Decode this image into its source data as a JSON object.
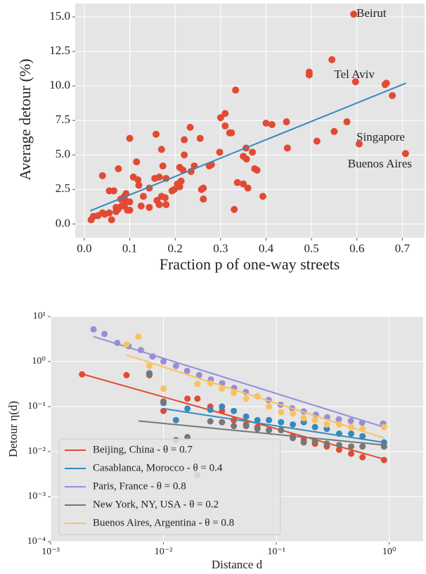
{
  "chart_data": [
    {
      "type": "scatter",
      "xlabel": "Fraction p of one-way streets",
      "ylabel": "Average detour (%)",
      "xlim": [
        -0.02,
        0.749
      ],
      "ylim": [
        -1.0,
        15.97
      ],
      "xticks": [
        {
          "value": 0,
          "label": "0.0"
        },
        0.1,
        0.2,
        0.3,
        0.4,
        0.5,
        0.6,
        0.7
      ],
      "yticks": [
        {
          "value": 0,
          "label": "0.0"
        },
        2.5,
        {
          "value": 5,
          "label": "5.0"
        },
        7.5,
        {
          "value": 10,
          "label": "10.0"
        },
        12.5,
        {
          "value": 15,
          "label": "15.0"
        }
      ],
      "grid": true,
      "series": [
        {
          "style": "points",
          "color": "#E24A33",
          "x": [
            0.593,
            0.545,
            0.495,
            0.495,
            0.597,
            0.665,
            0.662,
            0.678,
            0.333,
            0.31,
            0.3,
            0.31,
            0.32,
            0.324,
            0.4,
            0.413,
            0.445,
            0.578,
            0.55,
            0.605,
            0.707,
            0.512,
            0.447,
            0.37,
            0.356,
            0.35,
            0.357,
            0.375,
            0.38,
            0.298,
            0.337,
            0.35,
            0.36,
            0.393,
            0.33,
            0.28,
            0.275,
            0.255,
            0.233,
            0.22,
            0.22,
            0.217,
            0.235,
            0.242,
            0.21,
            0.205,
            0.213,
            0.198,
            0.193,
            0.21,
            0.258,
            0.262,
            0.262,
            0.158,
            0.17,
            0.1,
            0.075,
            0.115,
            0.173,
            0.165,
            0.155,
            0.18,
            0.143,
            0.17,
            0.178,
            0.16,
            0.165,
            0.18,
            0.143,
            0.118,
            0.108,
            0.12,
            0.13,
            0.125,
            0.1,
            0.09,
            0.095,
            0.088,
            0.092,
            0.08,
            0.082,
            0.075,
            0.07,
            0.065,
            0.055,
            0.04,
            0.07,
            0.045,
            0.04,
            0.06,
            0.055,
            0.03,
            0.02,
            0.015,
            0.088,
            0.1
          ],
          "values": [
            15.2,
            11.9,
            11.0,
            10.8,
            10.3,
            10.2,
            10.1,
            9.3,
            9.7,
            8.0,
            7.7,
            7.1,
            6.6,
            6.6,
            7.3,
            7.2,
            7.4,
            7.4,
            6.7,
            5.8,
            5.1,
            6.0,
            5.5,
            5.2,
            5.5,
            4.9,
            4.7,
            4.0,
            3.9,
            5.2,
            3.0,
            2.9,
            2.6,
            2.0,
            1.05,
            4.3,
            4.2,
            6.2,
            7.0,
            6.1,
            5.0,
            3.9,
            3.8,
            4.2,
            4.1,
            2.9,
            3.1,
            2.5,
            2.4,
            2.7,
            2.5,
            2.6,
            1.8,
            6.5,
            5.4,
            6.2,
            4.0,
            4.5,
            4.2,
            3.4,
            3.3,
            3.3,
            2.6,
            2.0,
            1.9,
            1.7,
            1.4,
            1.4,
            1.2,
            3.2,
            3.4,
            2.8,
            2.0,
            1.3,
            1.6,
            1.7,
            1.0,
            2.0,
            2.2,
            1.8,
            1.3,
            1.1,
            1.2,
            2.4,
            2.4,
            3.5,
            0.9,
            0.7,
            0.8,
            0.3,
            0.8,
            0.6,
            0.55,
            0.3,
            1.3,
            1.0
          ]
        },
        {
          "style": "line",
          "color": "#348ABD",
          "x": [
            0.013,
            0.708
          ],
          "values": [
            0.95,
            10.2
          ]
        }
      ],
      "annotations": [
        {
          "text": "Beirut",
          "x": 0.599,
          "y": 15.2
        },
        {
          "text": "Tel Aviv",
          "x": 0.55,
          "y": 10.77
        },
        {
          "text": "Singapore",
          "x": 0.599,
          "y": 6.22
        },
        {
          "text": "Buenos Aires",
          "x": 0.58,
          "y": 4.29
        }
      ]
    },
    {
      "type": "scatter",
      "xlabel": "Distance d",
      "ylabel": "Detour η(d)",
      "xscale": "log",
      "yscale": "log",
      "xlim": [
        0.001,
        2.0
      ],
      "ylim": [
        0.0001,
        10
      ],
      "xticks": [
        {
          "value": 0.001,
          "label": "10⁻³"
        },
        {
          "value": 0.01,
          "label": "10⁻²"
        },
        {
          "value": 0.1,
          "label": "10⁻¹"
        },
        {
          "value": 1,
          "label": "10⁰"
        }
      ],
      "yticks": [
        {
          "value": 0.0001,
          "label": "10⁻⁴"
        },
        {
          "value": 0.001,
          "label": "10⁻³"
        },
        {
          "value": 0.01,
          "label": "10⁻²"
        },
        {
          "value": 0.1,
          "label": "10⁻¹"
        },
        {
          "value": 1,
          "label": "10⁰"
        },
        {
          "value": 10,
          "label": "10¹"
        }
      ],
      "grid": true,
      "legend": "lower left",
      "series": [
        {
          "name": "Beijing, China - θ = 0.7",
          "color": "#E24A33",
          "x": [
            0.0019,
            0.0047,
            0.0075,
            0.01,
            0.0163,
            0.02,
            0.026,
            0.033,
            0.042,
            0.054,
            0.068,
            0.086,
            0.11,
            0.14,
            0.175,
            0.22,
            0.28,
            0.36,
            0.46,
            0.58,
            0.9
          ],
          "values": [
            0.52,
            0.5,
            0.5,
            0.08,
            0.15,
            0.15,
            0.1,
            0.08,
            0.05,
            0.04,
            0.035,
            0.03,
            0.03,
            0.022,
            0.018,
            0.015,
            0.013,
            0.011,
            0.009,
            0.0075,
            0.0065
          ],
          "fit": {
            "x": [
              0.0019,
              0.9
            ],
            "values": [
              0.53,
              0.0068
            ]
          }
        },
        {
          "name": "Casablanca, Morocco - θ = 0.4",
          "color": "#348ABD",
          "x": [
            0.0075,
            0.01,
            0.0129,
            0.0163,
            0.026,
            0.033,
            0.042,
            0.054,
            0.068,
            0.086,
            0.11,
            0.14,
            0.175,
            0.22,
            0.28,
            0.36,
            0.46,
            0.58,
            0.9
          ],
          "values": [
            0.55,
            0.12,
            0.05,
            0.09,
            0.085,
            0.1,
            0.08,
            0.06,
            0.05,
            0.05,
            0.045,
            0.04,
            0.045,
            0.035,
            0.032,
            0.025,
            0.025,
            0.022,
            0.016
          ],
          "fit": {
            "x": [
              0.01,
              0.9
            ],
            "values": [
              0.09,
              0.016
            ]
          }
        },
        {
          "name": "Paris, France - θ = 0.8",
          "color": "#988ED5",
          "x": [
            0.0024,
            0.003,
            0.0039,
            0.0049,
            0.0063,
            0.008,
            0.01,
            0.0129,
            0.0162,
            0.0207,
            0.0263,
            0.0331,
            0.0423,
            0.0537,
            0.068,
            0.0855,
            0.109,
            0.138,
            0.175,
            0.224,
            0.282,
            0.358,
            0.457,
            0.575,
            0.885
          ],
          "values": [
            5.2,
            4.1,
            2.6,
            2.2,
            1.8,
            1.3,
            1.0,
            0.8,
            0.62,
            0.5,
            0.4,
            0.33,
            0.26,
            0.21,
            0.17,
            0.14,
            0.11,
            0.092,
            0.078,
            0.066,
            0.058,
            0.052,
            0.048,
            0.044,
            0.042
          ],
          "fit": {
            "x": [
              0.0024,
              0.9
            ],
            "values": [
              3.6,
              0.035
            ]
          }
        },
        {
          "name": "New York, NY, USA - θ = 0.2",
          "color": "#777777",
          "x": [
            0.0075,
            0.01,
            0.0129,
            0.0163,
            0.02,
            0.026,
            0.033,
            0.042,
            0.054,
            0.068,
            0.086,
            0.11,
            0.14,
            0.175,
            0.22,
            0.28,
            0.36,
            0.46,
            0.58,
            0.9
          ],
          "values": [
            0.53,
            0.13,
            0.018,
            0.021,
            0.003,
            0.047,
            0.045,
            0.037,
            0.037,
            0.032,
            0.03,
            0.03,
            0.02,
            0.016,
            0.017,
            0.015,
            0.014,
            0.013,
            0.013,
            0.013
          ],
          "fit": {
            "x": [
              0.006,
              0.9
            ],
            "values": [
              0.048,
              0.014
            ]
          }
        },
        {
          "name": "Buenos Aires, Argentina - θ = 0.8",
          "color": "#FBC15E",
          "x": [
            0.0047,
            0.006,
            0.0075,
            0.01,
            0.02,
            0.026,
            0.033,
            0.042,
            0.054,
            0.068,
            0.086,
            0.11,
            0.14,
            0.175,
            0.22,
            0.28,
            0.36,
            0.46,
            0.58,
            0.9
          ],
          "values": [
            2.4,
            3.6,
            0.8,
            0.25,
            0.32,
            0.33,
            0.25,
            0.2,
            0.15,
            0.17,
            0.1,
            0.075,
            0.07,
            0.055,
            0.05,
            0.04,
            0.04,
            0.035,
            0.032,
            0.035
          ],
          "fit": {
            "x": [
              0.0047,
              0.9
            ],
            "values": [
              1.4,
              0.02
            ]
          }
        }
      ]
    }
  ]
}
